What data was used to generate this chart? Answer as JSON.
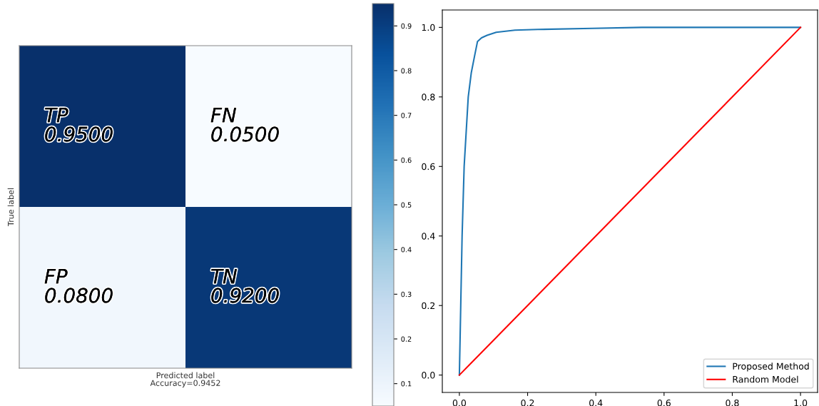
{
  "chart_data": [
    {
      "type": "heatmap",
      "xlabel": "Predicted label\nAccuracy=0.9452",
      "ylabel": "True label",
      "categories": [
        null,
        null
      ],
      "y_categories": [
        null,
        null
      ],
      "cells": [
        [
          0.95,
          0.05
        ],
        [
          0.08,
          0.92
        ]
      ],
      "cell_labels": [
        [
          "TP\n0.9500",
          "FN\n0.0500"
        ],
        [
          "FP\n0.0800",
          "TN\n0.9200"
        ]
      ],
      "clim": [
        0.05,
        0.95
      ],
      "cticks": [
        0.1,
        0.2,
        0.3,
        0.4,
        0.5,
        0.6,
        0.7,
        0.8,
        0.9
      ],
      "tick_labels": false
    },
    {
      "type": "line",
      "xlim": [
        -0.05,
        1.05
      ],
      "ylim": [
        -0.05,
        1.05
      ],
      "xticks": [
        {
          "value": 0,
          "label": "0.0"
        },
        0.2,
        0.4,
        0.6,
        0.8,
        {
          "value": 1,
          "label": "1.0"
        }
      ],
      "yticks": [
        {
          "value": 0,
          "label": "0.0"
        },
        0.2,
        0.4,
        0.6,
        0.8,
        {
          "value": 1,
          "label": "1.0"
        }
      ],
      "legend": "bottom right",
      "grid": false,
      "series": [
        {
          "name": "Proposed Method",
          "color": "#1f77b4",
          "x": [
            0,
            0.002,
            0.004,
            0.008,
            0.014,
            0.02,
            0.026,
            0.035,
            0.045,
            0.053,
            0.065,
            0.081,
            0.108,
            0.163,
            0.23,
            0.39,
            0.535,
            1
          ],
          "values": [
            0,
            0.1,
            0.2,
            0.4,
            0.6,
            0.7,
            0.8,
            0.87,
            0.92,
            0.959,
            0.97,
            0.977,
            0.986,
            0.992,
            0.994,
            0.997,
            1.0,
            1.0
          ]
        },
        {
          "name": "Random Model",
          "color": "#ff0000",
          "x": [
            0,
            1
          ],
          "values": [
            0,
            1
          ]
        }
      ]
    }
  ]
}
